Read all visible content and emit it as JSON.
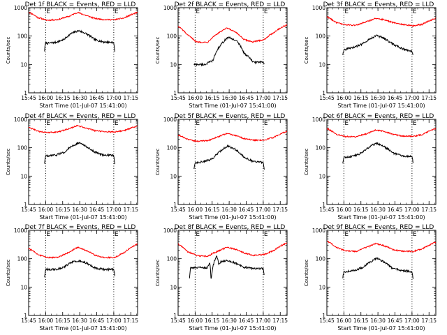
{
  "chart_data": [
    {
      "type": "line",
      "title": "Det 1f BLACK = Events, RED = LLD",
      "ylabel": "Counts/sec",
      "xlabel": "Start Time (01-Jul-07 15:41:00)",
      "yscale": "log",
      "ylim": [
        1,
        1000
      ],
      "xlim_min": [
        4,
        100
      ],
      "x_ticks": [
        "15:45",
        "16:00",
        "16:15",
        "16:30",
        "16:45",
        "17:00",
        "17:15"
      ],
      "x_tick_min": [
        4,
        19,
        34,
        49,
        64,
        79,
        94
      ],
      "event_markers": {
        "labels": [
          "E",
          "E"
        ],
        "x_min": [
          19,
          79
        ]
      },
      "red": {
        "x_min": [
          4,
          12,
          20,
          30,
          40,
          47,
          54,
          62,
          70,
          80,
          88,
          100
        ],
        "values": [
          700,
          450,
          360,
          380,
          500,
          680,
          540,
          420,
          380,
          380,
          430,
          680
        ]
      },
      "black": {
        "x_min": [
          18,
          19,
          20,
          28,
          35,
          42,
          48,
          55,
          62,
          70,
          78,
          79,
          80
        ],
        "values": [
          30,
          60,
          55,
          60,
          75,
          125,
          155,
          120,
          75,
          62,
          60,
          55,
          28
        ]
      }
    },
    {
      "type": "line",
      "title": "Det 2f BLACK = Events, RED = LLD",
      "ylabel": "Counts/sec",
      "xlabel": "Start Time (01-Jul-07 15:41:00)",
      "yscale": "log",
      "ylim": [
        1,
        1000
      ],
      "xlim_min": [
        4,
        100
      ],
      "x_ticks": [
        "15:45",
        "16:00",
        "16:15",
        "16:30",
        "16:45",
        "17:00",
        "17:15"
      ],
      "x_tick_min": [
        4,
        19,
        34,
        49,
        64,
        79,
        94
      ],
      "event_markers": {
        "labels": [
          "E",
          "E"
        ],
        "x_min": [
          19,
          79
        ]
      },
      "red": {
        "x_min": [
          4,
          12,
          20,
          30,
          40,
          47,
          54,
          62,
          70,
          80,
          88,
          100
        ],
        "values": [
          220,
          110,
          62,
          60,
          130,
          190,
          140,
          75,
          62,
          75,
          130,
          250
        ]
      },
      "black": {
        "x_min": [
          18,
          19,
          20,
          28,
          35,
          42,
          48,
          55,
          62,
          70,
          78,
          79,
          80
        ],
        "values": [
          10,
          10,
          10,
          10,
          14,
          50,
          90,
          70,
          25,
          12,
          12,
          12,
          10
        ]
      }
    },
    {
      "type": "line",
      "title": "Det 3f BLACK = Events, RED = LLD",
      "ylabel": "Counts/sec",
      "xlabel": "Start Time (01-Jul-07 15:41:00)",
      "yscale": "log",
      "ylim": [
        1,
        1000
      ],
      "xlim_min": [
        4,
        100
      ],
      "x_ticks": [
        "15:45",
        "16:00",
        "16:15",
        "16:30",
        "16:45",
        "17:00",
        "17:15"
      ],
      "x_tick_min": [
        4,
        19,
        34,
        49,
        64,
        79,
        94
      ],
      "event_markers": {
        "labels": [
          "E",
          "E"
        ],
        "x_min": [
          19,
          79
        ]
      },
      "red": {
        "x_min": [
          4,
          12,
          20,
          30,
          40,
          47,
          54,
          62,
          70,
          80,
          88,
          100
        ],
        "values": [
          480,
          300,
          250,
          240,
          330,
          420,
          380,
          300,
          260,
          230,
          260,
          420
        ]
      },
      "black": {
        "x_min": [
          18,
          19,
          20,
          28,
          35,
          42,
          48,
          55,
          62,
          70,
          78,
          79,
          80
        ],
        "values": [
          22,
          32,
          34,
          40,
          52,
          80,
          105,
          80,
          52,
          36,
          30,
          28,
          20
        ]
      }
    },
    {
      "type": "line",
      "title": "Det 4f BLACK = Events, RED = LLD",
      "ylabel": "Counts/sec",
      "xlabel": "Start Time (01-Jul-07 15:41:00)",
      "yscale": "log",
      "ylim": [
        1,
        1000
      ],
      "xlim_min": [
        4,
        100
      ],
      "x_ticks": [
        "15:45",
        "16:00",
        "16:15",
        "16:30",
        "16:45",
        "17:00",
        "17:15"
      ],
      "x_tick_min": [
        4,
        19,
        34,
        49,
        64,
        79,
        94
      ],
      "event_markers": {
        "labels": [
          "E",
          "E"
        ],
        "x_min": [
          19,
          79
        ]
      },
      "red": {
        "x_min": [
          4,
          12,
          20,
          30,
          40,
          47,
          54,
          62,
          70,
          80,
          88,
          100
        ],
        "values": [
          520,
          380,
          340,
          360,
          470,
          600,
          500,
          400,
          370,
          360,
          400,
          580
        ]
      },
      "black": {
        "x_min": [
          18,
          19,
          20,
          28,
          35,
          42,
          48,
          55,
          62,
          70,
          78,
          79,
          80
        ],
        "values": [
          28,
          52,
          50,
          55,
          68,
          110,
          150,
          110,
          70,
          56,
          54,
          52,
          26
        ]
      }
    },
    {
      "type": "line",
      "title": "Det 5f BLACK = Events, RED = LLD",
      "ylabel": "Counts/sec",
      "xlabel": "Start Time (01-Jul-07 15:41:00)",
      "yscale": "log",
      "ylim": [
        1,
        1000
      ],
      "xlim_min": [
        4,
        100
      ],
      "x_ticks": [
        "15:45",
        "16:00",
        "16:15",
        "16:30",
        "16:45",
        "17:00",
        "17:15"
      ],
      "x_tick_min": [
        4,
        19,
        34,
        49,
        64,
        79,
        94
      ],
      "event_markers": {
        "labels": [
          "E",
          "E"
        ],
        "x_min": [
          19,
          79
        ]
      },
      "red": {
        "x_min": [
          4,
          12,
          20,
          30,
          40,
          47,
          54,
          62,
          70,
          80,
          88,
          100
        ],
        "values": [
          280,
          200,
          170,
          175,
          250,
          320,
          270,
          210,
          185,
          185,
          230,
          380
        ]
      },
      "black": {
        "x_min": [
          18,
          19,
          20,
          28,
          35,
          42,
          48,
          55,
          62,
          70,
          78,
          79,
          80
        ],
        "values": [
          18,
          30,
          30,
          33,
          42,
          80,
          115,
          85,
          45,
          33,
          31,
          30,
          16
        ]
      }
    },
    {
      "type": "line",
      "title": "Det 6f BLACK = Events, RED = LLD",
      "ylabel": "Counts/sec",
      "xlabel": "Start Time (01-Jul-07 15:41:00)",
      "yscale": "log",
      "ylim": [
        1,
        1000
      ],
      "xlim_min": [
        4,
        100
      ],
      "x_ticks": [
        "15:45",
        "16:00",
        "16:15",
        "16:30",
        "16:45",
        "17:00",
        "17:15"
      ],
      "x_tick_min": [
        4,
        19,
        34,
        49,
        64,
        79,
        94
      ],
      "event_markers": {
        "labels": [
          "E",
          "E"
        ],
        "x_min": [
          19,
          79
        ]
      },
      "red": {
        "x_min": [
          4,
          12,
          20,
          30,
          40,
          47,
          54,
          62,
          70,
          80,
          88,
          100
        ],
        "values": [
          480,
          300,
          250,
          240,
          320,
          420,
          380,
          300,
          260,
          250,
          290,
          480
        ]
      },
      "black": {
        "x_min": [
          18,
          19,
          20,
          28,
          35,
          42,
          48,
          55,
          62,
          70,
          78,
          79,
          80
        ],
        "values": [
          28,
          48,
          46,
          52,
          66,
          110,
          145,
          105,
          66,
          52,
          50,
          50,
          30
        ]
      }
    },
    {
      "type": "line",
      "title": "Det 7f BLACK = Events, RED = LLD",
      "ylabel": "Counts/sec",
      "xlabel": "Start Time (01-Jul-07 15:41:00)",
      "yscale": "log",
      "ylim": [
        1,
        1000
      ],
      "xlim_min": [
        4,
        100
      ],
      "x_ticks": [
        "15:45",
        "16:00",
        "16:15",
        "16:30",
        "16:45",
        "17:00",
        "17:15"
      ],
      "x_tick_min": [
        4,
        19,
        34,
        49,
        64,
        79,
        94
      ],
      "event_markers": {
        "labels": [
          "E",
          "E"
        ],
        "x_min": [
          19,
          79
        ]
      },
      "red": {
        "x_min": [
          4,
          12,
          20,
          30,
          40,
          47,
          54,
          62,
          70,
          80,
          88,
          100
        ],
        "values": [
          230,
          140,
          110,
          110,
          170,
          250,
          200,
          135,
          110,
          110,
          160,
          330
        ]
      },
      "black": {
        "x_min": [
          18,
          19,
          20,
          28,
          35,
          42,
          48,
          55,
          62,
          70,
          78,
          79,
          80
        ],
        "values": [
          22,
          42,
          42,
          42,
          50,
          75,
          85,
          70,
          48,
          42,
          42,
          42,
          24
        ]
      }
    },
    {
      "type": "line",
      "title": "Det 8f BLACK = Events, RED = LLD",
      "ylabel": "Counts/sec",
      "xlabel": "Start Time (01-Jul-07 15:41:00)",
      "yscale": "log",
      "ylim": [
        1,
        1000
      ],
      "xlim_min": [
        4,
        100
      ],
      "x_ticks": [
        "15:45",
        "16:00",
        "16:15",
        "16:30",
        "16:45",
        "17:00",
        "17:15"
      ],
      "x_tick_min": [
        4,
        19,
        34,
        49,
        64,
        79,
        94
      ],
      "event_markers": {
        "labels": [
          "E",
          "E"
        ],
        "x_min": [
          19,
          79
        ]
      },
      "red": {
        "x_min": [
          4,
          12,
          20,
          30,
          40,
          47,
          54,
          62,
          70,
          80,
          88,
          100
        ],
        "values": [
          330,
          180,
          130,
          120,
          190,
          250,
          220,
          160,
          130,
          140,
          190,
          360
        ]
      },
      "black": {
        "x_min": [
          14,
          15,
          22,
          30,
          32,
          33,
          36,
          38,
          40,
          42,
          48,
          55,
          62,
          70,
          78,
          79,
          80
        ],
        "values": [
          20,
          48,
          50,
          48,
          70,
          15,
          80,
          120,
          60,
          80,
          85,
          70,
          50,
          45,
          45,
          45,
          22
        ]
      }
    },
    {
      "type": "line",
      "title": "Det 9f BLACK = Events, RED = LLD",
      "ylabel": "Counts/sec",
      "xlabel": "Start Time (01-Jul-07 15:41:00)",
      "yscale": "log",
      "ylim": [
        1,
        1000
      ],
      "xlim_min": [
        4,
        100
      ],
      "x_ticks": [
        "15:45",
        "16:00",
        "16:15",
        "16:30",
        "16:45",
        "17:00",
        "17:15"
      ],
      "x_tick_min": [
        4,
        19,
        34,
        49,
        64,
        79,
        94
      ],
      "event_markers": {
        "labels": [
          "E",
          "E"
        ],
        "x_min": [
          19,
          79
        ]
      },
      "red": {
        "x_min": [
          4,
          12,
          20,
          30,
          40,
          47,
          54,
          62,
          70,
          80,
          88,
          100
        ],
        "values": [
          420,
          250,
          190,
          180,
          260,
          340,
          290,
          210,
          185,
          180,
          220,
          380
        ]
      },
      "black": {
        "x_min": [
          18,
          19,
          20,
          28,
          35,
          42,
          48,
          55,
          62,
          70,
          78,
          79,
          80
        ],
        "values": [
          20,
          35,
          35,
          38,
          48,
          75,
          105,
          72,
          45,
          38,
          36,
          35,
          20
        ]
      }
    }
  ],
  "colors": {
    "events": "#000000",
    "lld": "#ff0000",
    "axes": "#000000"
  }
}
